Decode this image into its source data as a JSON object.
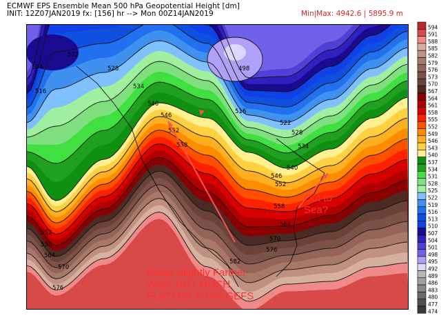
{
  "header": {
    "title": "ECMWF EPS Ensemble Mean 500 hPa Geopotential Height [dm]",
    "init": "INIT: 12Z07JAN2019 fx: [156] hr --> Mon 00Z14JAN2019",
    "minmax": "Min|Max: 4942.6 | 5895.9 m"
  },
  "colorbar": {
    "levels": [
      "594",
      "591",
      "588",
      "585",
      "582",
      "579",
      "576",
      "573",
      "570",
      "567",
      "564",
      "561",
      "558",
      "555",
      "552",
      "549",
      "546",
      "543",
      "540",
      "537",
      "534",
      "531",
      "528",
      "525",
      "522",
      "519",
      "516",
      "513",
      "510",
      "507",
      "504",
      "501",
      "498",
      "495",
      "492",
      "489",
      "486",
      "483",
      "480",
      "477",
      "474"
    ],
    "colors": [
      "#b8262e",
      "#d84a4a",
      "#f08a8a",
      "#d8b0a0",
      "#c09080",
      "#a87868",
      "#946458",
      "#7c5248",
      "#6a4238",
      "#4a2a22",
      "#8b0000",
      "#b00000",
      "#d80000",
      "#ff2000",
      "#ff5000",
      "#ff8c00",
      "#ffb020",
      "#ffd040",
      "#fff090",
      "#109010",
      "#20a020",
      "#40e040",
      "#80e080",
      "#a0f0a0",
      "#80c0ff",
      "#4090f0",
      "#2070f0",
      "#1050e0",
      "#1040e8",
      "#1a0a90",
      "#3020c0",
      "#5040d8",
      "#7060e8",
      "#b0a0f8",
      "#dcd8fc",
      "#b8b8b8",
      "#a0a0a0",
      "#888888",
      "#6a6a6a",
      "#505050",
      "#383838"
    ]
  },
  "contour_labels": [
    "504",
    "516",
    "522",
    "528",
    "534",
    "540",
    "546",
    "552",
    "558",
    "498",
    "516",
    "522",
    "528",
    "534",
    "540",
    "546",
    "552",
    "558",
    "564",
    "570",
    "576",
    "582",
    "552",
    "558",
    "564",
    "570",
    "576"
  ],
  "annotations": {
    "ridge_note": [
      "Ridge Slightly Farther",
      "West, BUT MUCH",
      "FLATTER THAN GEFS"
    ],
    "sea_note": [
      "Out to",
      "Sea?"
    ],
    "arrow_color": "#ff5050"
  }
}
